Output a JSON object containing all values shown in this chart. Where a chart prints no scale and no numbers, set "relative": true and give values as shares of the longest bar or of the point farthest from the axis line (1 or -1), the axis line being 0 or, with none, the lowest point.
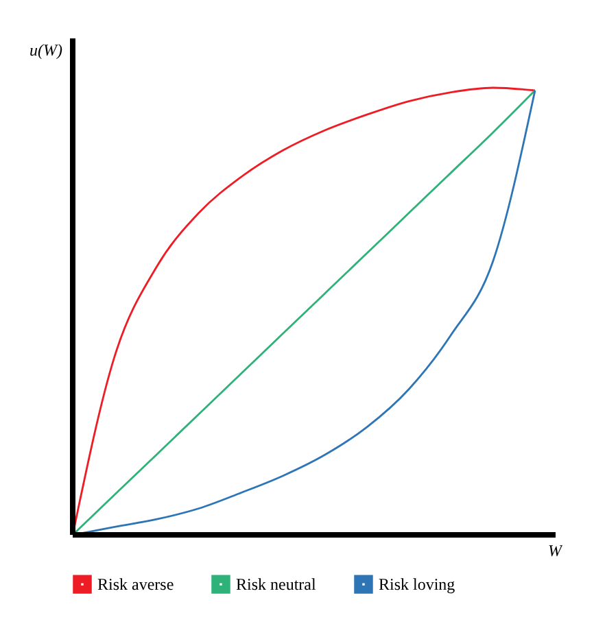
{
  "chart_data": {
    "type": "line",
    "relative": true,
    "xlabel": "W",
    "ylabel": "u(W)",
    "legend": "bottom",
    "marker": "none",
    "line_style": "solid",
    "grid": false,
    "categories": [
      null,
      null,
      null,
      null,
      null,
      null,
      null,
      null,
      null,
      null,
      null,
      null
    ],
    "series": [
      {
        "name": "Risk averse",
        "color": "#ee1c25",
        "values": [
          0,
          0.4,
          0.6,
          0.72,
          0.8,
          0.86,
          0.905,
          0.94,
          0.97,
          0.99,
          1,
          0.994
        ]
      },
      {
        "name": "Risk neutral",
        "color": "#2fb27a",
        "values": [
          0,
          0.09,
          0.18,
          0.27,
          0.36,
          0.45,
          0.54,
          0.63,
          0.72,
          0.81,
          0.9,
          0.994
        ]
      },
      {
        "name": "Risk loving",
        "color": "#2e75b6",
        "values": [
          0,
          0.018,
          0.035,
          0.059,
          0.094,
          0.132,
          0.179,
          0.241,
          0.326,
          0.447,
          0.612,
          0.994
        ]
      }
    ]
  }
}
